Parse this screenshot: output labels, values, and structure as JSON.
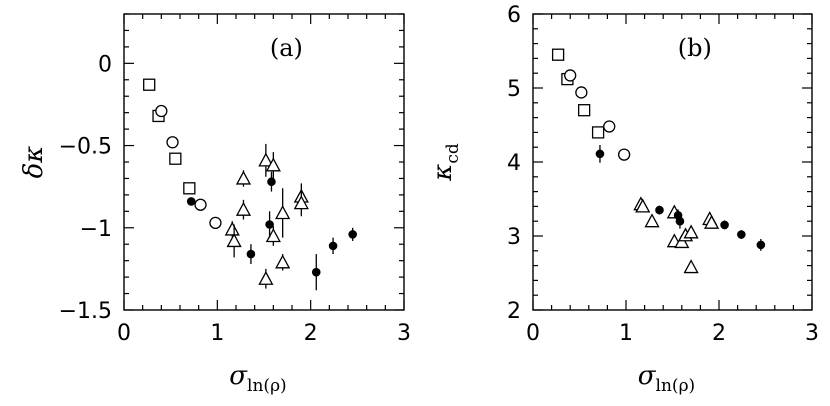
{
  "chart_data": [
    {
      "type": "scatter",
      "panel_label": "(a)",
      "xlabel": "σ",
      "xlabel_sub": "ln(ρ)",
      "ylabel": "δκ",
      "xlim": [
        0,
        3
      ],
      "ylim": [
        -1.5,
        0.3
      ],
      "xticks": [
        0,
        1,
        2,
        3
      ],
      "yticks": [
        0,
        -0.5,
        -1,
        -1.5
      ],
      "xtick_labels": [
        "0",
        "1",
        "2",
        "3"
      ],
      "ytick_labels": [
        "0",
        "−0.5",
        "−1",
        "−1.5"
      ],
      "series": [
        {
          "marker": "square",
          "points": [
            {
              "x": 0.27,
              "y": -0.13
            },
            {
              "x": 0.37,
              "y": -0.32
            },
            {
              "x": 0.55,
              "y": -0.58
            },
            {
              "x": 0.7,
              "y": -0.76
            }
          ]
        },
        {
          "marker": "circle",
          "points": [
            {
              "x": 0.4,
              "y": -0.29
            },
            {
              "x": 0.52,
              "y": -0.48
            },
            {
              "x": 0.82,
              "y": -0.86
            },
            {
              "x": 0.98,
              "y": -0.97
            }
          ]
        },
        {
          "marker": "triangle",
          "points": [
            {
              "x": 1.16,
              "y": -1.01,
              "err": 0.05
            },
            {
              "x": 1.18,
              "y": -1.08,
              "err": 0.1
            },
            {
              "x": 1.28,
              "y": -0.7,
              "err": 0.05
            },
            {
              "x": 1.28,
              "y": -0.89,
              "err": 0.06
            },
            {
              "x": 1.52,
              "y": -0.59,
              "err": 0.1
            },
            {
              "x": 1.52,
              "y": -1.31,
              "err": 0.06
            },
            {
              "x": 1.6,
              "y": -0.62,
              "err": 0.08
            },
            {
              "x": 1.6,
              "y": -1.05,
              "err": 0.06
            },
            {
              "x": 1.7,
              "y": -0.91,
              "err": 0.15
            },
            {
              "x": 1.7,
              "y": -1.21,
              "err": 0.05
            },
            {
              "x": 1.9,
              "y": -0.81,
              "err": 0.08
            },
            {
              "x": 1.9,
              "y": -0.85,
              "err": 0.08
            }
          ]
        },
        {
          "marker": "filled-circle",
          "points": [
            {
              "x": 0.72,
              "y": -0.84,
              "err": 0.02
            },
            {
              "x": 1.36,
              "y": -1.16,
              "err": 0.06
            },
            {
              "x": 1.56,
              "y": -0.98,
              "err": 0.08
            },
            {
              "x": 1.58,
              "y": -0.72,
              "err": 0.06
            },
            {
              "x": 2.06,
              "y": -1.27,
              "err": 0.11
            },
            {
              "x": 2.24,
              "y": -1.11,
              "err": 0.05
            },
            {
              "x": 2.45,
              "y": -1.04,
              "err": 0.04
            }
          ]
        }
      ]
    },
    {
      "type": "scatter",
      "panel_label": "(b)",
      "xlabel": "σ",
      "xlabel_sub": "ln(ρ)",
      "ylabel": "κ",
      "ylabel_sub": "cd",
      "xlim": [
        0,
        3
      ],
      "ylim": [
        2,
        6
      ],
      "xticks": [
        0,
        1,
        2,
        3
      ],
      "yticks": [
        2,
        3,
        4,
        5,
        6
      ],
      "xtick_labels": [
        "0",
        "1",
        "2",
        "3"
      ],
      "ytick_labels": [
        "2",
        "3",
        "4",
        "5",
        "6"
      ],
      "series": [
        {
          "marker": "square",
          "points": [
            {
              "x": 0.27,
              "y": 5.45
            },
            {
              "x": 0.37,
              "y": 5.12
            },
            {
              "x": 0.55,
              "y": 4.7
            },
            {
              "x": 0.7,
              "y": 4.4
            }
          ]
        },
        {
          "marker": "circle",
          "points": [
            {
              "x": 0.4,
              "y": 5.17
            },
            {
              "x": 0.52,
              "y": 4.94
            },
            {
              "x": 0.82,
              "y": 4.48
            },
            {
              "x": 0.98,
              "y": 4.1
            }
          ]
        },
        {
          "marker": "triangle",
          "points": [
            {
              "x": 1.16,
              "y": 3.43
            },
            {
              "x": 1.18,
              "y": 3.4
            },
            {
              "x": 1.28,
              "y": 3.2
            },
            {
              "x": 1.52,
              "y": 2.93
            },
            {
              "x": 1.52,
              "y": 3.32
            },
            {
              "x": 1.6,
              "y": 2.92
            },
            {
              "x": 1.64,
              "y": 3.01
            },
            {
              "x": 1.7,
              "y": 2.58
            },
            {
              "x": 1.7,
              "y": 3.05
            },
            {
              "x": 1.9,
              "y": 3.23
            },
            {
              "x": 1.92,
              "y": 3.18
            }
          ]
        },
        {
          "marker": "filled-circle",
          "points": [
            {
              "x": 0.72,
              "y": 4.11,
              "err": 0.12
            },
            {
              "x": 1.36,
              "y": 3.35,
              "err": 0.06
            },
            {
              "x": 1.56,
              "y": 3.28,
              "err": 0.08
            },
            {
              "x": 1.58,
              "y": 3.2,
              "err": 0.1
            },
            {
              "x": 2.06,
              "y": 3.15,
              "err": 0.06
            },
            {
              "x": 2.24,
              "y": 3.02,
              "err": 0.06
            },
            {
              "x": 2.45,
              "y": 2.88,
              "err": 0.08
            }
          ]
        }
      ]
    }
  ]
}
